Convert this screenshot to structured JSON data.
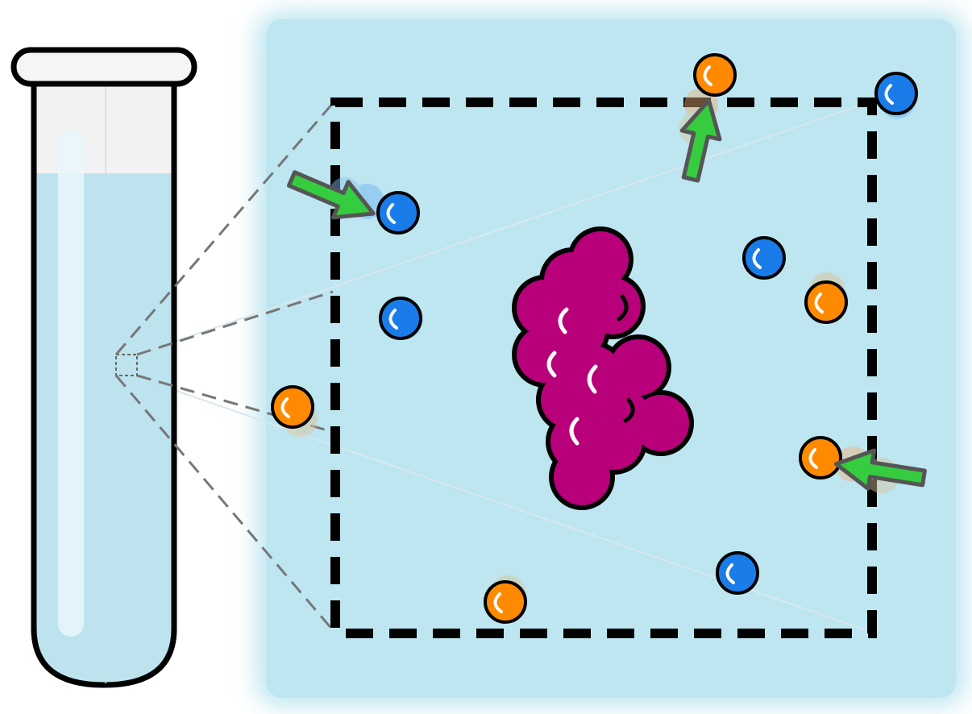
{
  "diagram": {
    "colors": {
      "background": "#ffffff",
      "solution": "#bfe6f1",
      "tube_liquid": "#bde3ee",
      "tube_empty": "#f2f2f2",
      "outline": "#000000",
      "protein": "#b8007a",
      "blue_particle": "#1a7ce8",
      "orange_particle": "#ff8a00",
      "arrow": "#35cc3f",
      "arrow_outline": "#555555"
    },
    "icons": {
      "test_tube": "test-tube-icon",
      "protein": "protein-cluster-icon",
      "blue_particle": "blue-particle-icon",
      "orange_particle": "orange-particle-icon",
      "arrow": "movement-arrow-icon"
    },
    "particle_counts": {
      "blue": 5,
      "orange": 5,
      "arrows": 3
    }
  }
}
